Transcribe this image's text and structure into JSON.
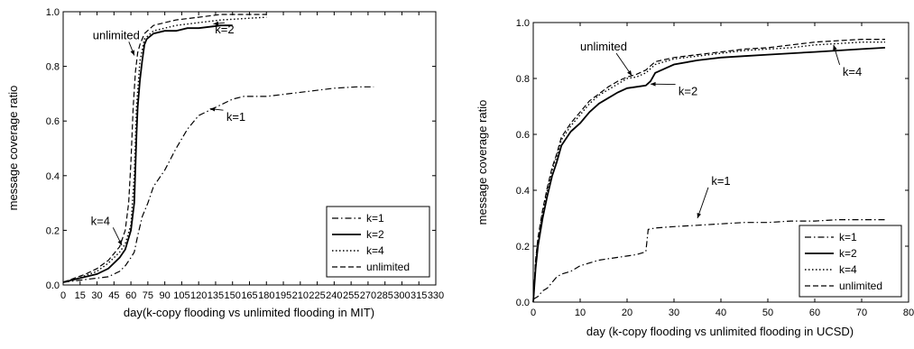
{
  "chart_data": [
    {
      "type": "line",
      "xlabel": "day(k-copy flooding vs unlimited flooding in MIT)",
      "ylabel": "message coverage ratio",
      "xlim": [
        0,
        330
      ],
      "ylim": [
        0.0,
        1.0
      ],
      "xticks": [
        "0",
        "15",
        "30",
        "45",
        "60",
        "75",
        "90",
        "105",
        "120",
        "135",
        "150",
        "165",
        "180",
        "195",
        "210",
        "225",
        "240",
        "255",
        "270",
        "285",
        "300",
        "315",
        "330"
      ],
      "xtick_values": [
        0,
        15,
        30,
        45,
        60,
        75,
        90,
        105,
        120,
        135,
        150,
        165,
        180,
        195,
        210,
        225,
        240,
        255,
        270,
        285,
        300,
        315,
        330
      ],
      "yticks": [
        "0.0",
        "0.2",
        "0.4",
        "0.6",
        "0.8",
        "1.0"
      ],
      "ytick_values": [
        0.0,
        0.2,
        0.4,
        0.6,
        0.8,
        1.0
      ],
      "grid": false,
      "legend_position": "bottom-right",
      "legend": [
        "k=1",
        "k=2",
        "k=4",
        "unlimited"
      ],
      "series": [
        {
          "name": "k=1",
          "style": "dashdot",
          "x": [
            0,
            10,
            20,
            30,
            40,
            50,
            55,
            60,
            63,
            66,
            70,
            75,
            80,
            90,
            100,
            110,
            120,
            130,
            140,
            150,
            160,
            180,
            200,
            220,
            240,
            260,
            275
          ],
          "y": [
            0.01,
            0.015,
            0.02,
            0.025,
            0.03,
            0.05,
            0.07,
            0.1,
            0.12,
            0.18,
            0.25,
            0.3,
            0.36,
            0.42,
            0.5,
            0.57,
            0.62,
            0.64,
            0.66,
            0.68,
            0.69,
            0.69,
            0.7,
            0.71,
            0.72,
            0.725,
            0.725
          ]
        },
        {
          "name": "k=2",
          "style": "solid",
          "x": [
            0,
            10,
            20,
            30,
            40,
            50,
            55,
            60,
            63,
            65,
            66,
            68,
            70,
            72,
            74,
            80,
            90,
            100,
            110,
            120,
            130,
            140,
            150
          ],
          "y": [
            0.01,
            0.02,
            0.03,
            0.04,
            0.06,
            0.1,
            0.13,
            0.2,
            0.3,
            0.55,
            0.65,
            0.75,
            0.82,
            0.88,
            0.9,
            0.92,
            0.93,
            0.93,
            0.94,
            0.94,
            0.945,
            0.95,
            0.95
          ]
        },
        {
          "name": "k=4",
          "style": "dotted",
          "x": [
            0,
            10,
            20,
            30,
            40,
            50,
            55,
            60,
            63,
            65,
            68,
            72,
            80,
            90,
            100,
            120,
            140,
            160,
            180
          ],
          "y": [
            0.01,
            0.02,
            0.035,
            0.05,
            0.08,
            0.12,
            0.15,
            0.22,
            0.4,
            0.65,
            0.82,
            0.9,
            0.93,
            0.94,
            0.95,
            0.96,
            0.97,
            0.975,
            0.98
          ]
        },
        {
          "name": "unlimited",
          "style": "dashed",
          "x": [
            0,
            10,
            20,
            30,
            40,
            50,
            55,
            58,
            60,
            62,
            64,
            66,
            68,
            72,
            80,
            90,
            100,
            120,
            140,
            160,
            180
          ],
          "y": [
            0.01,
            0.025,
            0.04,
            0.06,
            0.09,
            0.14,
            0.2,
            0.3,
            0.45,
            0.65,
            0.78,
            0.85,
            0.88,
            0.92,
            0.95,
            0.96,
            0.97,
            0.98,
            0.99,
            0.99,
            0.99
          ]
        }
      ],
      "annotations": [
        {
          "text": "unlimited",
          "x": 47,
          "y": 0.9,
          "arrow_to": [
            63,
            0.84
          ]
        },
        {
          "text": "k=2",
          "x": 143,
          "y": 0.92,
          "arrow_to": [
            133,
            0.955
          ]
        },
        {
          "text": "k=1",
          "x": 153,
          "y": 0.6,
          "arrow_to": [
            130,
            0.645
          ]
        },
        {
          "text": "k=4",
          "x": 33,
          "y": 0.22,
          "arrow_to": [
            52,
            0.145
          ]
        }
      ]
    },
    {
      "type": "line",
      "xlabel": "day (k-copy flooding vs unlimited flooding in UCSD)",
      "ylabel": "message coverage ratio",
      "xlim": [
        0,
        80
      ],
      "ylim": [
        0.0,
        1.0
      ],
      "xticks": [
        "0",
        "10",
        "20",
        "30",
        "40",
        "50",
        "60",
        "70",
        "80"
      ],
      "xtick_values": [
        0,
        10,
        20,
        30,
        40,
        50,
        60,
        70,
        80
      ],
      "yticks": [
        "0.0",
        "0.2",
        "0.4",
        "0.6",
        "0.8",
        "1.0"
      ],
      "ytick_values": [
        0.0,
        0.2,
        0.4,
        0.6,
        0.8,
        1.0
      ],
      "grid": false,
      "legend_position": "bottom-right",
      "legend": [
        "k=1",
        "k=2",
        "k=4",
        "unlimited"
      ],
      "series": [
        {
          "name": "k=1",
          "style": "dashdot",
          "x": [
            0,
            1,
            2,
            3,
            4,
            5,
            6,
            8,
            10,
            12,
            14,
            16,
            18,
            20,
            22,
            24,
            24.5,
            26,
            30,
            35,
            40,
            45,
            50,
            55,
            60,
            65,
            70,
            75
          ],
          "y": [
            0.01,
            0.02,
            0.04,
            0.05,
            0.07,
            0.09,
            0.1,
            0.11,
            0.13,
            0.14,
            0.15,
            0.155,
            0.16,
            0.165,
            0.17,
            0.18,
            0.26,
            0.265,
            0.27,
            0.275,
            0.28,
            0.285,
            0.285,
            0.29,
            0.29,
            0.295,
            0.295,
            0.295
          ]
        },
        {
          "name": "k=2",
          "style": "solid",
          "x": [
            0,
            0.5,
            1,
            2,
            3,
            4,
            5,
            6,
            8,
            10,
            12,
            14,
            16,
            18,
            20,
            22,
            24,
            25,
            26,
            30,
            35,
            40,
            45,
            50,
            55,
            60,
            65,
            70,
            75
          ],
          "y": [
            0.0,
            0.12,
            0.2,
            0.3,
            0.38,
            0.45,
            0.5,
            0.56,
            0.61,
            0.64,
            0.68,
            0.71,
            0.73,
            0.75,
            0.765,
            0.77,
            0.775,
            0.79,
            0.82,
            0.85,
            0.865,
            0.875,
            0.88,
            0.885,
            0.89,
            0.895,
            0.9,
            0.905,
            0.91
          ]
        },
        {
          "name": "k=4",
          "style": "dotted",
          "x": [
            0,
            0.5,
            1,
            2,
            3,
            4,
            5,
            6,
            8,
            10,
            12,
            14,
            16,
            18,
            20,
            22,
            24,
            26,
            30,
            35,
            40,
            45,
            50,
            55,
            60,
            65,
            70,
            75
          ],
          "y": [
            0.0,
            0.14,
            0.22,
            0.32,
            0.4,
            0.47,
            0.52,
            0.58,
            0.63,
            0.67,
            0.71,
            0.74,
            0.76,
            0.78,
            0.8,
            0.805,
            0.82,
            0.85,
            0.87,
            0.88,
            0.89,
            0.9,
            0.905,
            0.91,
            0.92,
            0.925,
            0.93,
            0.93
          ]
        },
        {
          "name": "unlimited",
          "style": "dashed",
          "x": [
            0,
            0.5,
            1,
            2,
            3,
            4,
            5,
            6,
            8,
            10,
            12,
            14,
            16,
            18,
            20,
            22,
            24,
            26,
            30,
            35,
            40,
            45,
            50,
            55,
            60,
            65,
            70,
            75
          ],
          "y": [
            0.0,
            0.15,
            0.23,
            0.33,
            0.41,
            0.48,
            0.53,
            0.59,
            0.64,
            0.68,
            0.72,
            0.745,
            0.77,
            0.79,
            0.805,
            0.815,
            0.83,
            0.86,
            0.875,
            0.885,
            0.895,
            0.905,
            0.91,
            0.92,
            0.93,
            0.935,
            0.94,
            0.94
          ]
        }
      ],
      "annotations": [
        {
          "text": "unlimited",
          "x": 15,
          "y": 0.9,
          "arrow_to": [
            21,
            0.81
          ]
        },
        {
          "text": "k=2",
          "x": 33,
          "y": 0.74,
          "arrow_to": [
            25,
            0.78
          ]
        },
        {
          "text": "k=4",
          "x": 68,
          "y": 0.81,
          "arrow_to": [
            64,
            0.92
          ]
        },
        {
          "text": "k=1",
          "x": 40,
          "y": 0.42,
          "arrow_to": [
            35,
            0.3
          ]
        }
      ]
    }
  ]
}
